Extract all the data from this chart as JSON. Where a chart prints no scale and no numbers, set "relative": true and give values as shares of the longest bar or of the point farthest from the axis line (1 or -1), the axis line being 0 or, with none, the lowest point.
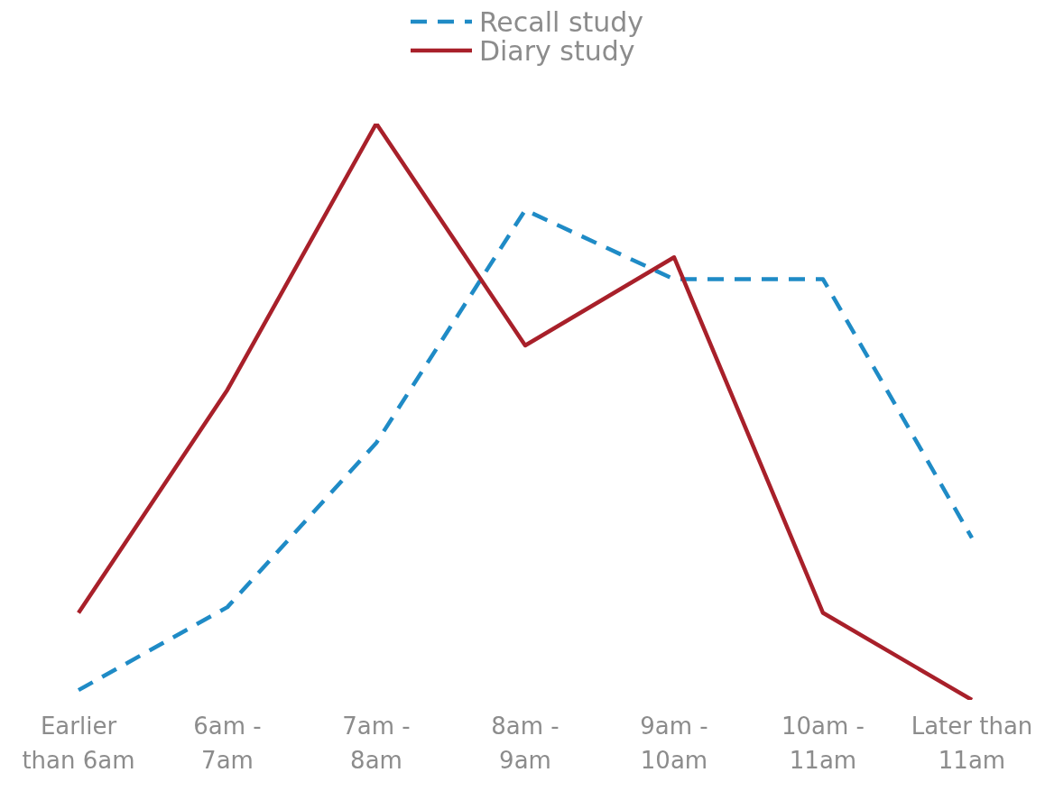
{
  "chart_data": {
    "type": "line",
    "relative": true,
    "categories": [
      "Earlier than 6am",
      "6am - 7am",
      "7am - 8am",
      "8am - 9am",
      "9am - 10am",
      "10am - 11am",
      "Later than 11am"
    ],
    "series": [
      {
        "name": "Recall study",
        "color": "#1f8bc6",
        "line_style": "dashed",
        "values": [
          0.017,
          0.161,
          0.446,
          0.85,
          0.73,
          0.73,
          0.281
        ]
      },
      {
        "name": "Diary study",
        "color": "#a8202a",
        "line_style": "solid",
        "values": [
          0.151,
          0.538,
          1,
          0.615,
          0.768,
          0.151,
          0
        ]
      }
    ],
    "legend": "top",
    "grid": false,
    "marker": "none"
  }
}
